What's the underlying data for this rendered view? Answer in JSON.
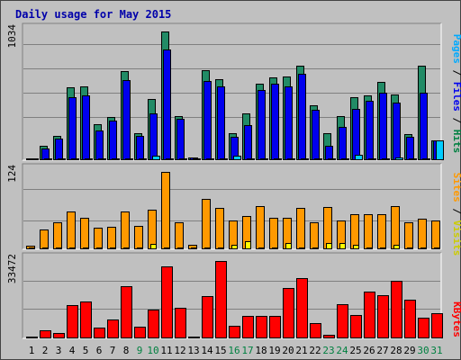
{
  "chart_data": {
    "type": "bar",
    "title": "Daily usage for May 2015",
    "colors": {
      "background": "#c0c0c0",
      "outer_border": "#333333",
      "hits": "#228b66",
      "files": "#0000ee",
      "pages": "#00ccff",
      "visits": "#ffff00",
      "sites": "#ff9900",
      "kbytes": "#ff0000",
      "weekend_label": "#008040",
      "weekday_label": "#000000",
      "title": "#0000aa"
    },
    "days": [
      "1",
      "2",
      "3",
      "4",
      "5",
      "6",
      "7",
      "8",
      "9",
      "10",
      "11",
      "12",
      "13",
      "14",
      "15",
      "16",
      "17",
      "18",
      "19",
      "20",
      "21",
      "22",
      "23",
      "24",
      "25",
      "26",
      "27",
      "28",
      "29",
      "30",
      "31"
    ],
    "weekend_days": [
      "9",
      "10",
      "16",
      "17",
      "23",
      "24",
      "30",
      "31"
    ],
    "legend_top": [
      {
        "text": "Pages",
        "color": "#00aaff"
      },
      {
        "text": " / ",
        "color": "#000000"
      },
      {
        "text": "Files",
        "color": "#0000ee"
      },
      {
        "text": " / ",
        "color": "#000000"
      },
      {
        "text": "Hits",
        "color": "#008040"
      }
    ],
    "legend_mid": [
      {
        "text": "Sites",
        "color": "#ff9900"
      },
      {
        "text": " / ",
        "color": "#000000"
      },
      {
        "text": "Visits",
        "color": "#cccc00"
      }
    ],
    "legend_bot": [
      {
        "text": "KBytes",
        "color": "#ff0000"
      }
    ],
    "panels": [
      {
        "id": "hits-files-pages",
        "max_label": "1034",
        "ymax": 1034,
        "series": [
          {
            "name": "Hits",
            "color": "#228b66",
            "values": [
              6,
              110,
              190,
              580,
              590,
              285,
              345,
              710,
              210,
              490,
              1034,
              350,
              16,
              720,
              650,
              210,
              370,
              610,
              660,
              670,
              760,
              440,
              210,
              350,
              500,
              515,
              625,
              525,
              205,
              760,
              155
            ]
          },
          {
            "name": "Files",
            "color": "#0000ee",
            "values": [
              5,
              90,
              170,
              500,
              520,
              230,
              310,
              640,
              190,
              370,
              890,
              330,
              14,
              630,
              590,
              180,
              280,
              560,
              610,
              590,
              690,
              400,
              110,
              260,
              410,
              470,
              540,
              460,
              180,
              540,
              150
            ]
          },
          {
            "name": "Pages",
            "color": "#00ccff",
            "values": [
              2,
              6,
              6,
              5,
              5,
              5,
              5,
              6,
              6,
              28,
              6,
              5,
              2,
              5,
              5,
              32,
              5,
              6,
              5,
              5,
              6,
              8,
              5,
              10,
              36,
              5,
              5,
              18,
              5,
              5,
              150
            ]
          }
        ]
      },
      {
        "id": "sites-visits",
        "max_label": "124",
        "ymax": 124,
        "series": [
          {
            "name": "Sites",
            "color": "#ff9900",
            "values": [
              4,
              30,
              42,
              60,
              50,
              33,
              35,
              60,
              37,
              62,
              124,
              43,
              6,
              80,
              65,
              45,
              52,
              68,
              50,
              50,
              65,
              42,
              67,
              45,
              56,
              55,
              55,
              68,
              42,
              48,
              45
            ]
          },
          {
            "name": "Visits",
            "color": "#ffff00",
            "values": [
              0,
              1,
              1,
              1,
              1,
              1,
              1,
              1,
              1,
              8,
              1,
              1,
              0,
              1,
              1,
              6,
              12,
              1,
              1,
              9,
              1,
              1,
              9,
              9,
              6,
              1,
              1,
              6,
              1,
              1,
              1
            ]
          }
        ]
      },
      {
        "id": "kbytes",
        "max_label": "33472",
        "ymax": 33472,
        "series": [
          {
            "name": "KBytes",
            "color": "#ff0000",
            "values": [
              180,
              3000,
              1870,
              14000,
              15800,
              4500,
              7700,
              22300,
              4700,
              12200,
              31000,
              13000,
              100,
              18200,
              33472,
              5300,
              9600,
              9600,
              9600,
              21600,
              25900,
              6300,
              1130,
              14600,
              10000,
              20200,
              18600,
              24900,
              16600,
              8500,
              10500
            ]
          }
        ]
      }
    ]
  }
}
